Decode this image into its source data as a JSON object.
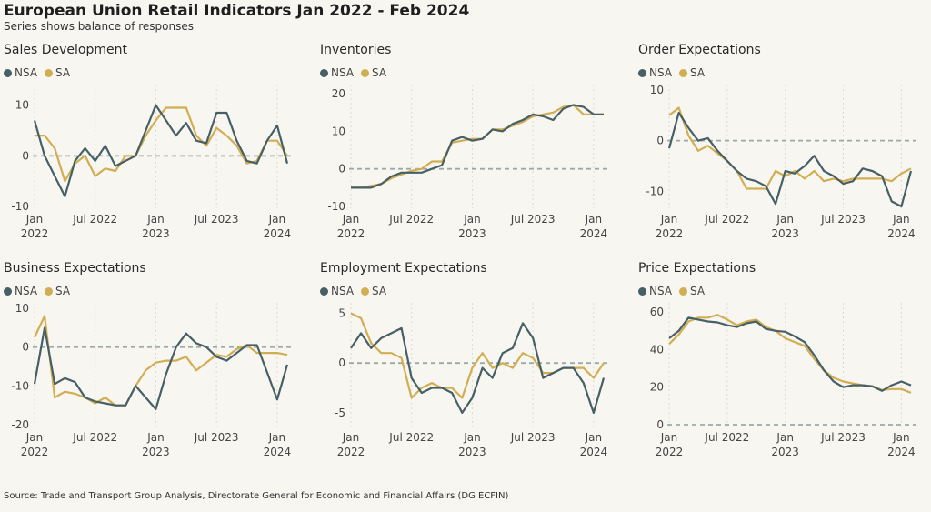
{
  "header": {
    "title": "European Union Retail Indicators Jan 2022 - Feb 2024",
    "subtitle": "Series shows balance of responses"
  },
  "footer": {
    "source": "Source: Trade and Transport Group Analysis, Directorate General for Economic and Financial Affairs (DG ECFIN)"
  },
  "colors": {
    "NSA": "#466066",
    "SA": "#d2ae52",
    "zero_line": "#9aaaa6",
    "grid": "#dedad0"
  },
  "chart_data": [
    {
      "type": "line",
      "title": "Sales Development",
      "legend": [
        "NSA",
        "SA"
      ],
      "x_tick_labels": [
        [
          "Jan",
          "2022"
        ],
        [
          "Jul 2022",
          ""
        ],
        [
          "Jan",
          "2023"
        ],
        [
          "Jul 2023",
          ""
        ],
        [
          "Jan",
          "2024"
        ]
      ],
      "x_tick_index": [
        0,
        6,
        12,
        18,
        24
      ],
      "ylim": [
        -10,
        13
      ],
      "yticks": [
        -10,
        0,
        10
      ],
      "series": [
        {
          "name": "NSA",
          "values": [
            7,
            0,
            -4,
            -8,
            -1,
            1.5,
            -1,
            2,
            -2,
            -1,
            0,
            5,
            10,
            7,
            4,
            6.5,
            3,
            2.5,
            8.5,
            8.5,
            3,
            -1,
            -1.5,
            3,
            6,
            -1.5
          ]
        },
        {
          "name": "SA",
          "values": [
            4,
            4,
            1.5,
            -5,
            -1.5,
            0,
            -4,
            -2.5,
            -3,
            0,
            0,
            4,
            7,
            9.5,
            9.5,
            9.5,
            4,
            2,
            5.5,
            4,
            2,
            -1.5,
            -1,
            3,
            3,
            0
          ]
        }
      ]
    },
    {
      "type": "line",
      "title": "Inventories",
      "legend": [
        "NSA",
        "SA"
      ],
      "x_tick_labels": [
        [
          "Jan",
          "2022"
        ],
        [
          "Jul 2022",
          ""
        ],
        [
          "Jan",
          "2023"
        ],
        [
          "Jul 2023",
          ""
        ],
        [
          "Jan",
          "2024"
        ]
      ],
      "x_tick_index": [
        0,
        6,
        12,
        18,
        24
      ],
      "ylim": [
        -10,
        21
      ],
      "yticks": [
        -10,
        0,
        10,
        20
      ],
      "series": [
        {
          "name": "NSA",
          "values": [
            -5,
            -5,
            -5,
            -4,
            -2,
            -1,
            -1,
            -1,
            0,
            1,
            7.5,
            8.5,
            7.5,
            8,
            10.5,
            10,
            12,
            13,
            14.5,
            14,
            13,
            16,
            17,
            16.5,
            14.5,
            14.5
          ]
        },
        {
          "name": "SA",
          "values": [
            -5,
            -5,
            -4.5,
            -4,
            -2.5,
            -1.5,
            -0.5,
            0,
            2,
            2,
            7,
            7.5,
            8,
            8,
            10.5,
            10.5,
            11.5,
            12.5,
            14,
            14.5,
            15,
            16.5,
            17,
            14.5,
            14.5,
            14.5
          ]
        }
      ]
    },
    {
      "type": "line",
      "title": "Order Expectations",
      "legend": [
        "NSA",
        "SA"
      ],
      "x_tick_labels": [
        [
          "Jan",
          "2022"
        ],
        [
          "Jul 2022",
          ""
        ],
        [
          "Jan",
          "2023"
        ],
        [
          "Jul 2023",
          ""
        ],
        [
          "Jan",
          "2024"
        ]
      ],
      "x_tick_index": [
        0,
        6,
        12,
        18,
        24
      ],
      "ylim": [
        -13,
        10
      ],
      "yticks": [
        -10,
        0,
        10
      ],
      "series": [
        {
          "name": "NSA",
          "values": [
            -1.5,
            5.5,
            2.5,
            0,
            0.5,
            -2,
            -4,
            -6,
            -7.5,
            -8,
            -9,
            -12.5,
            -6,
            -6.5,
            -5,
            -3,
            -6,
            -7,
            -8.5,
            -8,
            -5.5,
            -6,
            -7,
            -12,
            -13,
            -6
          ]
        },
        {
          "name": "SA",
          "values": [
            5,
            6.5,
            1,
            -2,
            -1,
            -2.5,
            -4,
            -6,
            -9.5,
            -9.5,
            -9.5,
            -6,
            -7,
            -6,
            -7.5,
            -6,
            -8,
            -7.5,
            -8,
            -7.5,
            -7.5,
            -7.5,
            -7.5,
            -8,
            -6.5,
            -5.5
          ]
        }
      ]
    },
    {
      "type": "line",
      "title": "Business Expectations",
      "legend": [
        "NSA",
        "SA"
      ],
      "x_tick_labels": [
        [
          "Jan",
          "2022"
        ],
        [
          "Jul 2022",
          ""
        ],
        [
          "Jan",
          "2023"
        ],
        [
          "Jul 2023",
          ""
        ],
        [
          "Jan",
          "2024"
        ]
      ],
      "x_tick_index": [
        0,
        6,
        12,
        18,
        24
      ],
      "ylim": [
        -20,
        10
      ],
      "yticks": [
        -20,
        -10,
        0,
        10
      ],
      "series": [
        {
          "name": "NSA",
          "values": [
            -9.5,
            5,
            -9.5,
            -8,
            -9,
            -13,
            -14,
            -14.5,
            -15,
            -15,
            -10,
            -13,
            -16,
            -7,
            0,
            3.5,
            1,
            0,
            -2.5,
            -3.5,
            -1.5,
            0.5,
            0.5,
            -6.5,
            -13.5,
            -4.5
          ]
        },
        {
          "name": "SA",
          "values": [
            2.5,
            8,
            -13,
            -11.5,
            -12,
            -13,
            -14.5,
            -13,
            -15,
            -15,
            -10,
            -6,
            -4,
            -3.5,
            -3.5,
            -2.5,
            -6,
            -4,
            -2,
            -2.5,
            -0.5,
            0.5,
            -1.5,
            -1.5,
            -1.5,
            -2
          ]
        }
      ]
    },
    {
      "type": "line",
      "title": "Employment Expectations",
      "legend": [
        "NSA",
        "SA"
      ],
      "x_tick_labels": [
        [
          "Jan",
          "2022"
        ],
        [
          "Jul 2022",
          ""
        ],
        [
          "Jan",
          "2023"
        ],
        [
          "Jul 2023",
          ""
        ],
        [
          "Jan",
          "2024"
        ]
      ],
      "x_tick_index": [
        0,
        6,
        12,
        18,
        24
      ],
      "ylim": [
        -6.2,
        5.5
      ],
      "yticks": [
        -5,
        0,
        5
      ],
      "series": [
        {
          "name": "NSA",
          "values": [
            1.5,
            3,
            1.5,
            2.5,
            3,
            3.5,
            -1.5,
            -3,
            -2.5,
            -2.5,
            -3,
            -5,
            -3.5,
            -0.5,
            -1.5,
            1,
            1.5,
            4,
            2.5,
            -1.5,
            -1,
            -0.5,
            -0.5,
            -2,
            -5,
            -1.5
          ]
        },
        {
          "name": "SA",
          "values": [
            5,
            4.5,
            2,
            1,
            1,
            0.5,
            -3.5,
            -2.5,
            -2,
            -2.5,
            -2.5,
            -3.5,
            -0.5,
            1,
            -0.5,
            0,
            -0.5,
            1,
            0.5,
            -1,
            -1,
            -0.5,
            -0.5,
            -0.5,
            -1.5,
            0
          ]
        }
      ]
    },
    {
      "type": "line",
      "title": "Price Expectations",
      "legend": [
        "NSA",
        "SA"
      ],
      "x_tick_labels": [
        [
          "Jan",
          "2022"
        ],
        [
          "Jul 2022",
          ""
        ],
        [
          "Jan",
          "2023"
        ],
        [
          "Jul 2023",
          ""
        ],
        [
          "Jan",
          "2024"
        ]
      ],
      "x_tick_index": [
        0,
        6,
        12,
        18,
        24
      ],
      "ylim": [
        0,
        62
      ],
      "yticks": [
        0,
        20,
        40,
        60
      ],
      "series": [
        {
          "name": "NSA",
          "values": [
            46,
            50,
            57,
            56,
            55,
            54.5,
            53,
            52,
            54,
            55,
            51,
            50,
            49.5,
            47,
            44,
            37,
            29,
            23,
            20,
            21,
            21,
            20.5,
            18,
            21,
            23,
            21
          ]
        },
        {
          "name": "SA",
          "values": [
            43,
            48,
            55,
            57,
            57,
            58.5,
            56,
            53,
            55,
            56,
            52,
            50,
            46,
            44,
            42,
            35,
            29,
            25,
            23,
            22,
            21,
            20.5,
            18.5,
            19,
            19,
            17
          ]
        }
      ]
    }
  ]
}
